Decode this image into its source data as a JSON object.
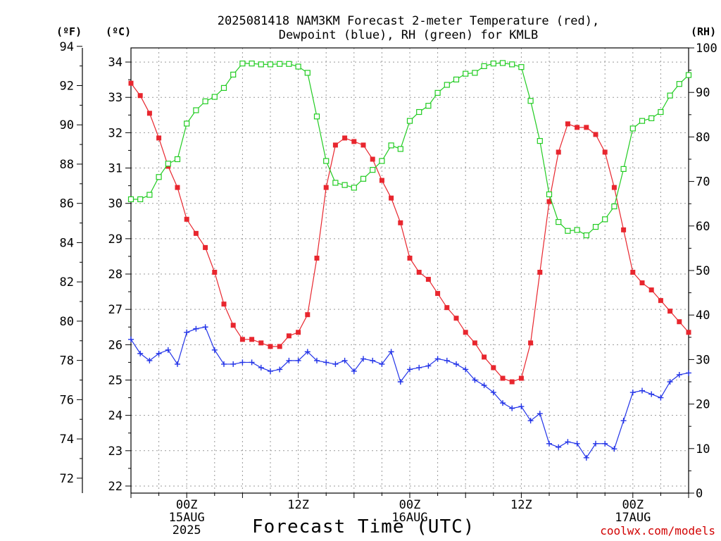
{
  "chart_data": {
    "type": "line",
    "title_line1": "2025081418 NAM3KM Forecast 2-meter Temperature (red),",
    "title_line2": "Dewpoint (blue), RH (green) for KMLB",
    "xlabel": "Forecast Time (UTC)",
    "credit": "coolwx.com/models",
    "units": {
      "fahrenheit": "(ºF)",
      "celsius": "(ºC)",
      "rh": "(RH)"
    },
    "x_hours_from_run_start": 0,
    "x_step_hours": 1,
    "x_range_hours": [
      18,
      78
    ],
    "x_ticks": [
      {
        "hour": 24,
        "line1": "00Z",
        "line2": "15AUG",
        "line3": "2025"
      },
      {
        "hour": 36,
        "line1": "12Z",
        "line2": "",
        "line3": ""
      },
      {
        "hour": 48,
        "line1": "00Z",
        "line2": "16AUG",
        "line3": ""
      },
      {
        "hour": 60,
        "line1": "12Z",
        "line2": "",
        "line3": ""
      },
      {
        "hour": 72,
        "line1": "00Z",
        "line2": "17AUG",
        "line3": ""
      }
    ],
    "y_left_celsius": {
      "range": [
        21.8,
        34.4
      ],
      "ticks": [
        22,
        23,
        24,
        25,
        26,
        27,
        28,
        29,
        30,
        31,
        32,
        33,
        34
      ]
    },
    "y_left_fahrenheit": {
      "range": [
        71.24,
        93.92
      ],
      "ticks": [
        72,
        74,
        76,
        78,
        80,
        82,
        84,
        86,
        88,
        90,
        92,
        94
      ]
    },
    "y_right_rh": {
      "range": [
        0,
        100
      ],
      "ticks": [
        0,
        10,
        20,
        30,
        40,
        50,
        60,
        70,
        80,
        90,
        100
      ]
    },
    "series": [
      {
        "name": "2-meter Temperature (red)",
        "color": "#e8262e",
        "axis": "celsius",
        "marker": "filled-square",
        "x": [
          18,
          19,
          20,
          21,
          22,
          23,
          24,
          25,
          26,
          27,
          28,
          29,
          30,
          31,
          32,
          33,
          34,
          35,
          36,
          37,
          38,
          39,
          40,
          41,
          42,
          43,
          44,
          45,
          46,
          47,
          48,
          49,
          50,
          51,
          52,
          53,
          54,
          55,
          56,
          57,
          58,
          59,
          60,
          61,
          62,
          63,
          64,
          65,
          66,
          67,
          68,
          69,
          70,
          71,
          72,
          73,
          74,
          75,
          76,
          77,
          78
        ],
        "values": [
          33.4,
          33.05,
          32.55,
          31.85,
          31.05,
          30.45,
          29.55,
          29.15,
          28.75,
          28.05,
          27.15,
          26.55,
          26.15,
          26.15,
          26.05,
          25.95,
          25.95,
          26.25,
          26.35,
          26.85,
          28.45,
          30.45,
          31.65,
          31.85,
          31.75,
          31.65,
          31.25,
          30.65,
          30.15,
          29.45,
          28.45,
          28.05,
          27.85,
          27.45,
          27.05,
          26.75,
          26.35,
          26.05,
          25.65,
          25.35,
          25.05,
          24.95,
          25.05,
          26.05,
          28.05,
          30.05,
          31.45,
          32.25,
          32.15,
          32.15,
          31.95,
          31.45,
          30.45,
          29.25,
          28.05,
          27.75,
          27.55,
          27.25,
          26.95,
          26.65,
          26.35
        ]
      },
      {
        "name": "Dewpoint (blue)",
        "color": "#2233e8",
        "axis": "celsius",
        "marker": "plus",
        "x": [
          18,
          19,
          20,
          21,
          22,
          23,
          24,
          25,
          26,
          27,
          28,
          29,
          30,
          31,
          32,
          33,
          34,
          35,
          36,
          37,
          38,
          39,
          40,
          41,
          42,
          43,
          44,
          45,
          46,
          47,
          48,
          49,
          50,
          51,
          52,
          53,
          54,
          55,
          56,
          57,
          58,
          59,
          60,
          61,
          62,
          63,
          64,
          65,
          66,
          67,
          68,
          69,
          70,
          71,
          72,
          73,
          74,
          75,
          76,
          77,
          78
        ],
        "values": [
          26.15,
          25.75,
          25.55,
          25.75,
          25.85,
          25.45,
          26.35,
          26.45,
          26.5,
          25.85,
          25.45,
          25.45,
          25.5,
          25.5,
          25.35,
          25.25,
          25.3,
          25.55,
          25.55,
          25.8,
          25.55,
          25.5,
          25.45,
          25.55,
          25.25,
          25.6,
          25.55,
          25.45,
          25.8,
          24.95,
          25.3,
          25.35,
          25.4,
          25.6,
          25.55,
          25.45,
          25.3,
          25.0,
          24.85,
          24.65,
          24.35,
          24.2,
          24.25,
          23.85,
          24.05,
          23.2,
          23.1,
          23.25,
          23.2,
          22.8,
          23.2,
          23.2,
          23.05,
          23.85,
          24.65,
          24.7,
          24.6,
          24.5,
          24.95,
          25.15,
          25.2
        ]
      },
      {
        "name": "RH (green)",
        "color": "#22cc22",
        "axis": "rh",
        "marker": "open-square",
        "x": [
          18,
          19,
          20,
          21,
          22,
          23,
          24,
          25,
          26,
          27,
          28,
          29,
          30,
          31,
          32,
          33,
          34,
          35,
          36,
          37,
          38,
          39,
          40,
          41,
          42,
          43,
          44,
          45,
          46,
          47,
          48,
          49,
          50,
          51,
          52,
          53,
          54,
          55,
          56,
          57,
          58,
          59,
          60,
          61,
          62,
          63,
          64,
          65,
          66,
          67,
          68,
          69,
          70,
          71,
          72,
          73,
          74,
          75,
          76,
          77,
          78
        ],
        "values": [
          66,
          66,
          67,
          71,
          74,
          75,
          83,
          86,
          88,
          89,
          91,
          94,
          96.5,
          96.5,
          96.3,
          96.3,
          96.4,
          96.4,
          95.8,
          94.4,
          84.6,
          74.6,
          69.7,
          69.2,
          68.6,
          70.6,
          72.6,
          74.6,
          78.1,
          77.3,
          83.6,
          85.6,
          87.0,
          89.9,
          91.7,
          92.9,
          94.2,
          94.4,
          95.9,
          96.5,
          96.6,
          96.3,
          95.7,
          88.1,
          79.1,
          67.1,
          60.9,
          58.9,
          59.1,
          57.9,
          59.8,
          61.5,
          64.4,
          72.8,
          81.9,
          83.6,
          84.2,
          85.6,
          89.3,
          91.9,
          93.9
        ]
      }
    ]
  }
}
